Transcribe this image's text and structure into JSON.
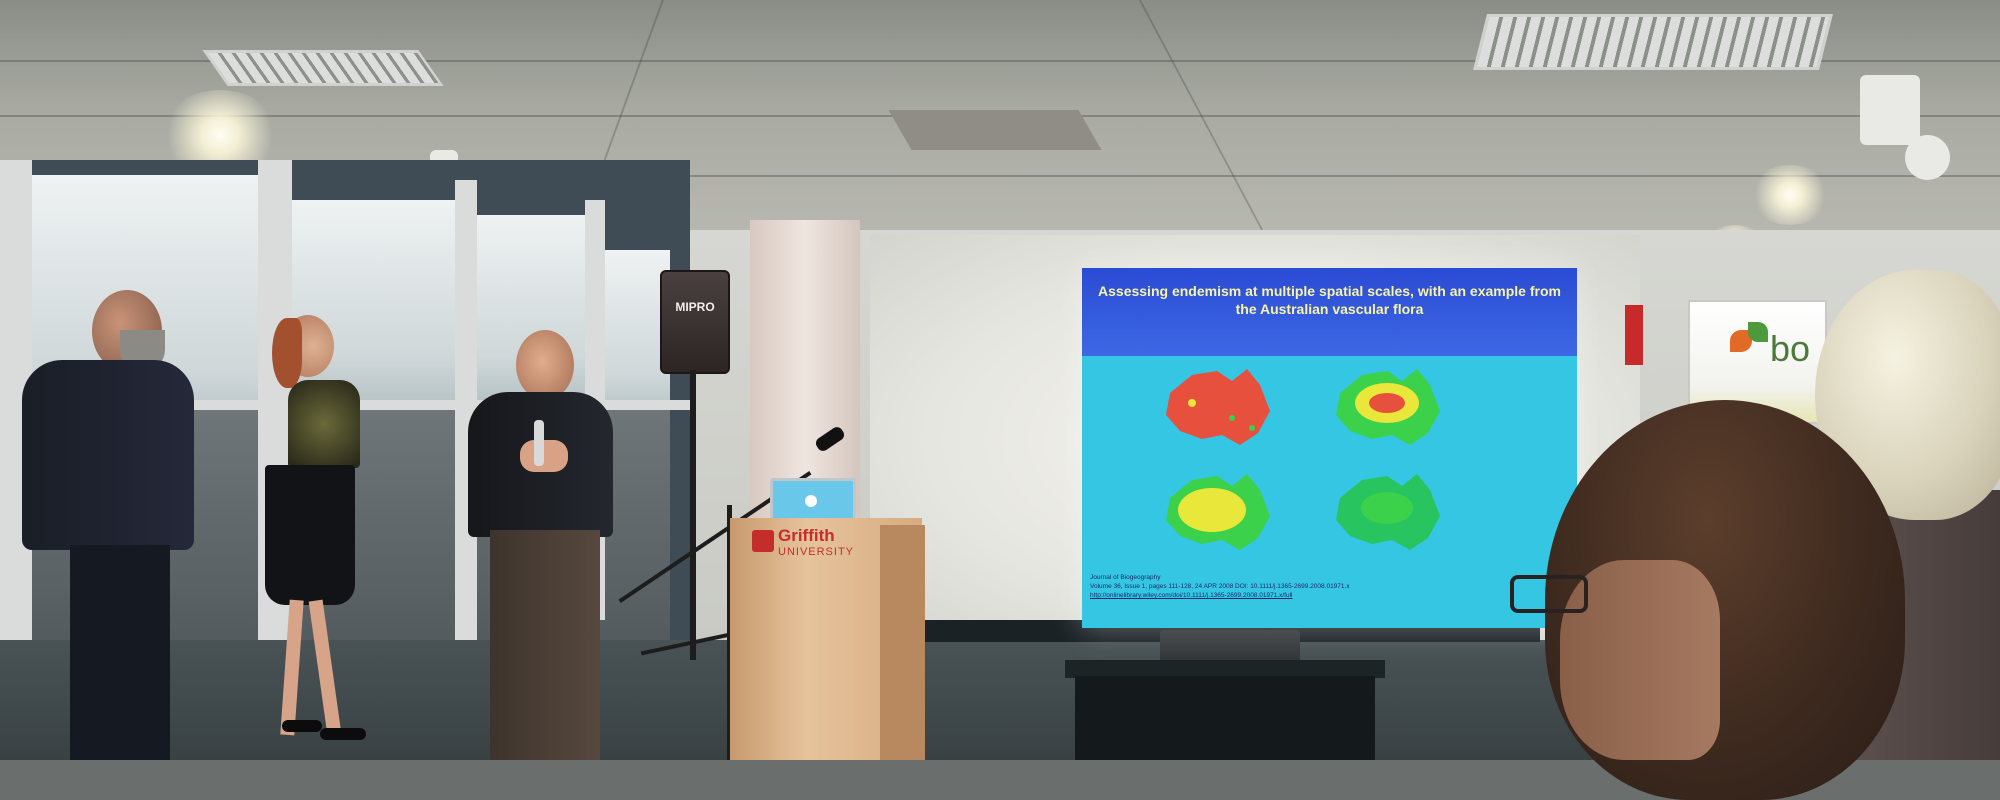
{
  "scene": {
    "slide": {
      "title": "Assessing endemism at multiple spatial scales, with an example from the Australian vascular flora",
      "footer_lines": [
        "Journal of Biogeography",
        "Volume 36, Issue 1, pages 111-128, 24 APR 2008 DOI: 10.1111/j.1365-2699.2008.01971.x",
        "http://onlinelibrary.wiley.com/doi/10.1111/j.1365-2699.2008.01971.x/full"
      ],
      "map_colors": {
        "background": "#35c6e3",
        "map_red": "#e7503c",
        "map_green": "#3bd14a",
        "map_yellow": "#e8e73a"
      }
    },
    "speaker_box_label": "MIPRO",
    "podium_logo": {
      "name": "Griffith",
      "sub": "UNIVERSITY"
    },
    "banner_text": "bo",
    "colors": {
      "slide_header": "#2b4bd4",
      "slide_title": "#f7f4a7",
      "podium_wood": "#d7ab80",
      "brand_red": "#c52d2d"
    }
  }
}
